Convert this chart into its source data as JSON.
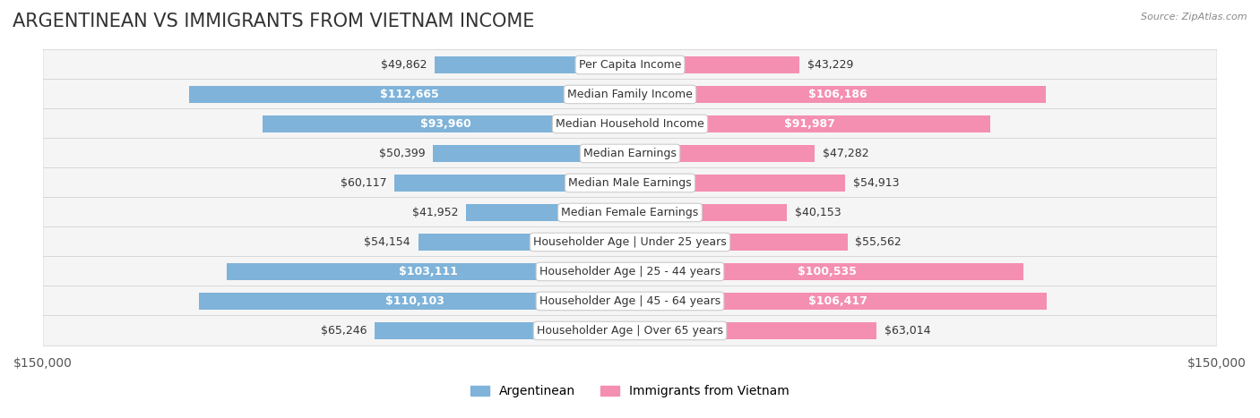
{
  "title": "ARGENTINEAN VS IMMIGRANTS FROM VIETNAM INCOME",
  "source": "Source: ZipAtlas.com",
  "categories": [
    "Per Capita Income",
    "Median Family Income",
    "Median Household Income",
    "Median Earnings",
    "Median Male Earnings",
    "Median Female Earnings",
    "Householder Age | Under 25 years",
    "Householder Age | 25 - 44 years",
    "Householder Age | 45 - 64 years",
    "Householder Age | Over 65 years"
  ],
  "argentinean_values": [
    49862,
    112665,
    93960,
    50399,
    60117,
    41952,
    54154,
    103111,
    110103,
    65246
  ],
  "vietnam_values": [
    43229,
    106186,
    91987,
    47282,
    54913,
    40153,
    55562,
    100535,
    106417,
    63014
  ],
  "argentinean_labels": [
    "$49,862",
    "$112,665",
    "$93,960",
    "$50,399",
    "$60,117",
    "$41,952",
    "$54,154",
    "$103,111",
    "$110,103",
    "$65,246"
  ],
  "vietnam_labels": [
    "$43,229",
    "$106,186",
    "$91,987",
    "$47,282",
    "$54,913",
    "$40,153",
    "$55,562",
    "$100,535",
    "$106,417",
    "$63,014"
  ],
  "max_value": 150000,
  "argentinean_color": "#7fb3d9",
  "vietnam_color": "#f48fb1",
  "argentinean_color_dark": "#5a9abf",
  "vietnam_color_dark": "#e96090",
  "bar_height": 0.55,
  "bg_row_color": "#f0f0f0",
  "bg_row_color2": "#ffffff",
  "label_inside_threshold": 70000,
  "title_fontsize": 15,
  "tick_fontsize": 10,
  "legend_fontsize": 10,
  "category_fontsize": 9
}
